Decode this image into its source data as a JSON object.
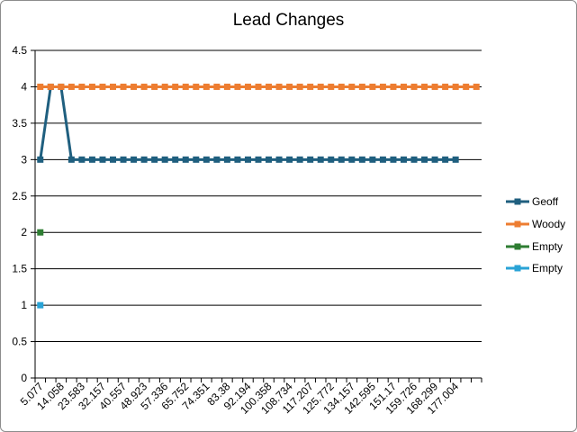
{
  "chart_data": {
    "type": "line",
    "title": "Lead Changes",
    "xlabel": "",
    "ylabel": "",
    "ylim": [
      0,
      4.5
    ],
    "y_ticks": [
      "0",
      "0.5",
      "1",
      "1.5",
      "2",
      "2.5",
      "3",
      "3.5",
      "4",
      "4.5"
    ],
    "x_tick_labels": [
      "5.077",
      "14.058",
      "23.583",
      "32.157",
      "40.557",
      "48.923",
      "57.336",
      "65.752",
      "74.351",
      "83.38",
      "92.194",
      "100.358",
      "108.734",
      "117.207",
      "125.772",
      "134.157",
      "142.595",
      "151.17",
      "159.726",
      "168.299",
      "177.004"
    ],
    "category_count": 43,
    "grid": true,
    "legend_position": "right",
    "series": [
      {
        "name": "Geoff",
        "color": "#1f5f7f",
        "values": [
          3,
          4,
          4,
          3,
          3,
          3,
          3,
          3,
          3,
          3,
          3,
          3,
          3,
          3,
          3,
          3,
          3,
          3,
          3,
          3,
          3,
          3,
          3,
          3,
          3,
          3,
          3,
          3,
          3,
          3,
          3,
          3,
          3,
          3,
          3,
          3,
          3,
          3,
          3,
          3,
          3
        ]
      },
      {
        "name": "Woody",
        "color": "#ed7d31",
        "values": [
          4,
          4,
          4,
          4,
          4,
          4,
          4,
          4,
          4,
          4,
          4,
          4,
          4,
          4,
          4,
          4,
          4,
          4,
          4,
          4,
          4,
          4,
          4,
          4,
          4,
          4,
          4,
          4,
          4,
          4,
          4,
          4,
          4,
          4,
          4,
          4,
          4,
          4,
          4,
          4,
          4,
          4,
          4
        ]
      },
      {
        "name": "Empty",
        "color": "#2e7d32",
        "values": [
          2
        ]
      },
      {
        "name": "Empty",
        "color": "#29a3d6",
        "values": [
          1
        ]
      }
    ]
  }
}
